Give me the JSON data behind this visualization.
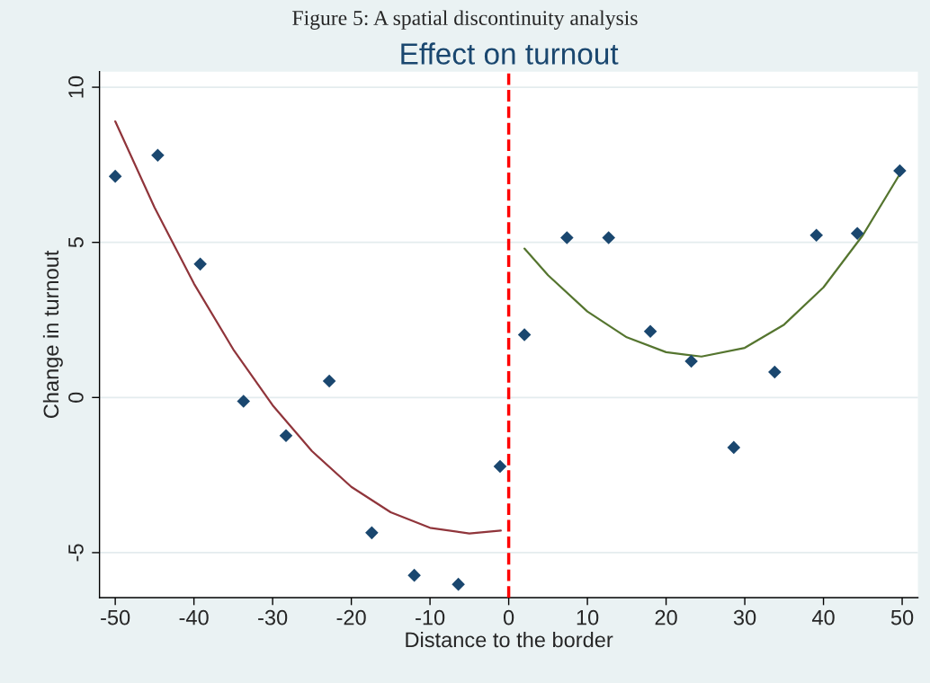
{
  "chart_data": {
    "type": "scatter",
    "title": "Effect on turnout",
    "xlabel": "Distance to the border",
    "ylabel": "Change in turnout",
    "annotations": [
      "Figure 5: A spatial discontinuity analysis"
    ],
    "series": [
      {
        "color": "#1a476f",
        "marker": "diamond",
        "x": [
          -50,
          -44.6,
          -39.2,
          -33.7,
          -28.3,
          -22.8,
          -17.4,
          -12.0,
          -6.4,
          -1.1,
          2.0,
          7.4,
          12.7,
          18.0,
          23.2,
          28.6,
          33.8,
          39.1,
          44.3,
          49.7
        ],
        "values": [
          7.13,
          7.81,
          4.3,
          -0.12,
          -1.23,
          0.53,
          -4.36,
          -5.73,
          -6.02,
          -2.22,
          2.02,
          5.15,
          5.15,
          2.13,
          1.17,
          -1.61,
          0.82,
          5.23,
          5.29,
          7.31
        ]
      },
      {
        "type": "line",
        "color": "#90353b",
        "x": [
          -50,
          -45,
          -40,
          -35,
          -30,
          -25,
          -20,
          -15,
          -10,
          -5,
          -1
        ],
        "values": [
          8.9,
          6.12,
          3.67,
          1.55,
          -0.25,
          -1.73,
          -2.88,
          -3.7,
          -4.2,
          -4.38,
          -4.29
        ]
      },
      {
        "type": "line",
        "color": "#55752f",
        "x": [
          2,
          5,
          10,
          15,
          20,
          24.5,
          30,
          35,
          40,
          45,
          49.7
        ],
        "values": [
          4.8,
          3.94,
          2.77,
          1.94,
          1.46,
          1.32,
          1.6,
          2.35,
          3.55,
          5.23,
          7.2
        ]
      }
    ],
    "ref_lines": [
      {
        "axis": "x",
        "value": 0,
        "color": "#ff0000",
        "line_style": "dashed"
      }
    ],
    "xlim": [
      -52,
      52
    ],
    "xticks": [
      -50,
      -40,
      -30,
      -20,
      -10,
      0,
      10,
      20,
      30,
      40,
      50
    ],
    "ylim": [
      -6.45,
      10.5
    ],
    "yticks": [
      -5,
      0,
      5,
      10
    ],
    "grid": "y",
    "legend": false
  }
}
